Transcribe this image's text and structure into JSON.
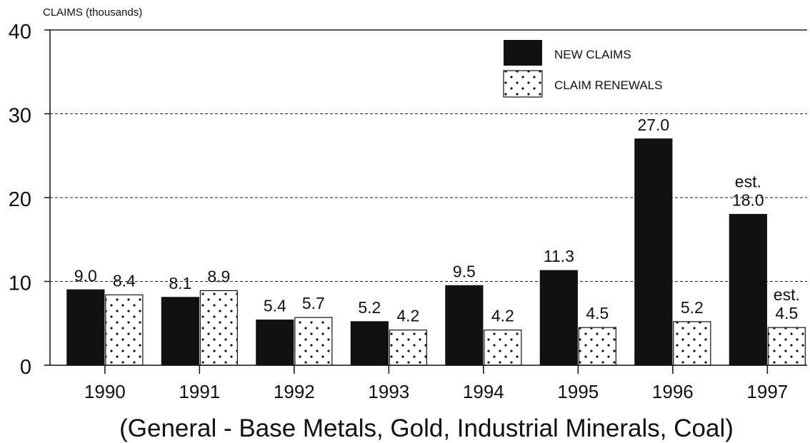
{
  "chart_data": {
    "type": "bar",
    "ylabel": "CLAIMS (thousands)",
    "xlabel": "(General - Base Metals, Gold, Industrial Minerals, Coal)",
    "ylim": [
      0,
      40
    ],
    "yticks": [
      "0",
      "10",
      "20",
      "30",
      "40"
    ],
    "grid": "dashed horizontal",
    "legend_position": "top-right",
    "categories": [
      "1990",
      "1991",
      "1992",
      "1993",
      "1994",
      "1995",
      "1996",
      "1997"
    ],
    "series": [
      {
        "name": "NEW CLAIMS",
        "fill": "#111111",
        "values": [
          9.0,
          8.1,
          5.4,
          5.2,
          9.5,
          11.3,
          27.0,
          18.0
        ],
        "labels": [
          "9.0",
          "8.1",
          "5.4",
          "5.2",
          "9.5",
          "11.3",
          "27.0",
          "18.0"
        ],
        "notes": [
          "",
          "",
          "",
          "",
          "",
          "",
          "",
          "est."
        ]
      },
      {
        "name": "CLAIM RENEWALS",
        "fill": "dotted",
        "values": [
          8.4,
          8.9,
          5.7,
          4.2,
          4.2,
          4.5,
          5.2,
          4.5
        ],
        "labels": [
          "8.4",
          "8.9",
          "5.7",
          "4.2",
          "4.2",
          "4.5",
          "5.2",
          "4.5"
        ],
        "notes": [
          "",
          "",
          "",
          "",
          "",
          "",
          "",
          "est."
        ]
      }
    ]
  }
}
